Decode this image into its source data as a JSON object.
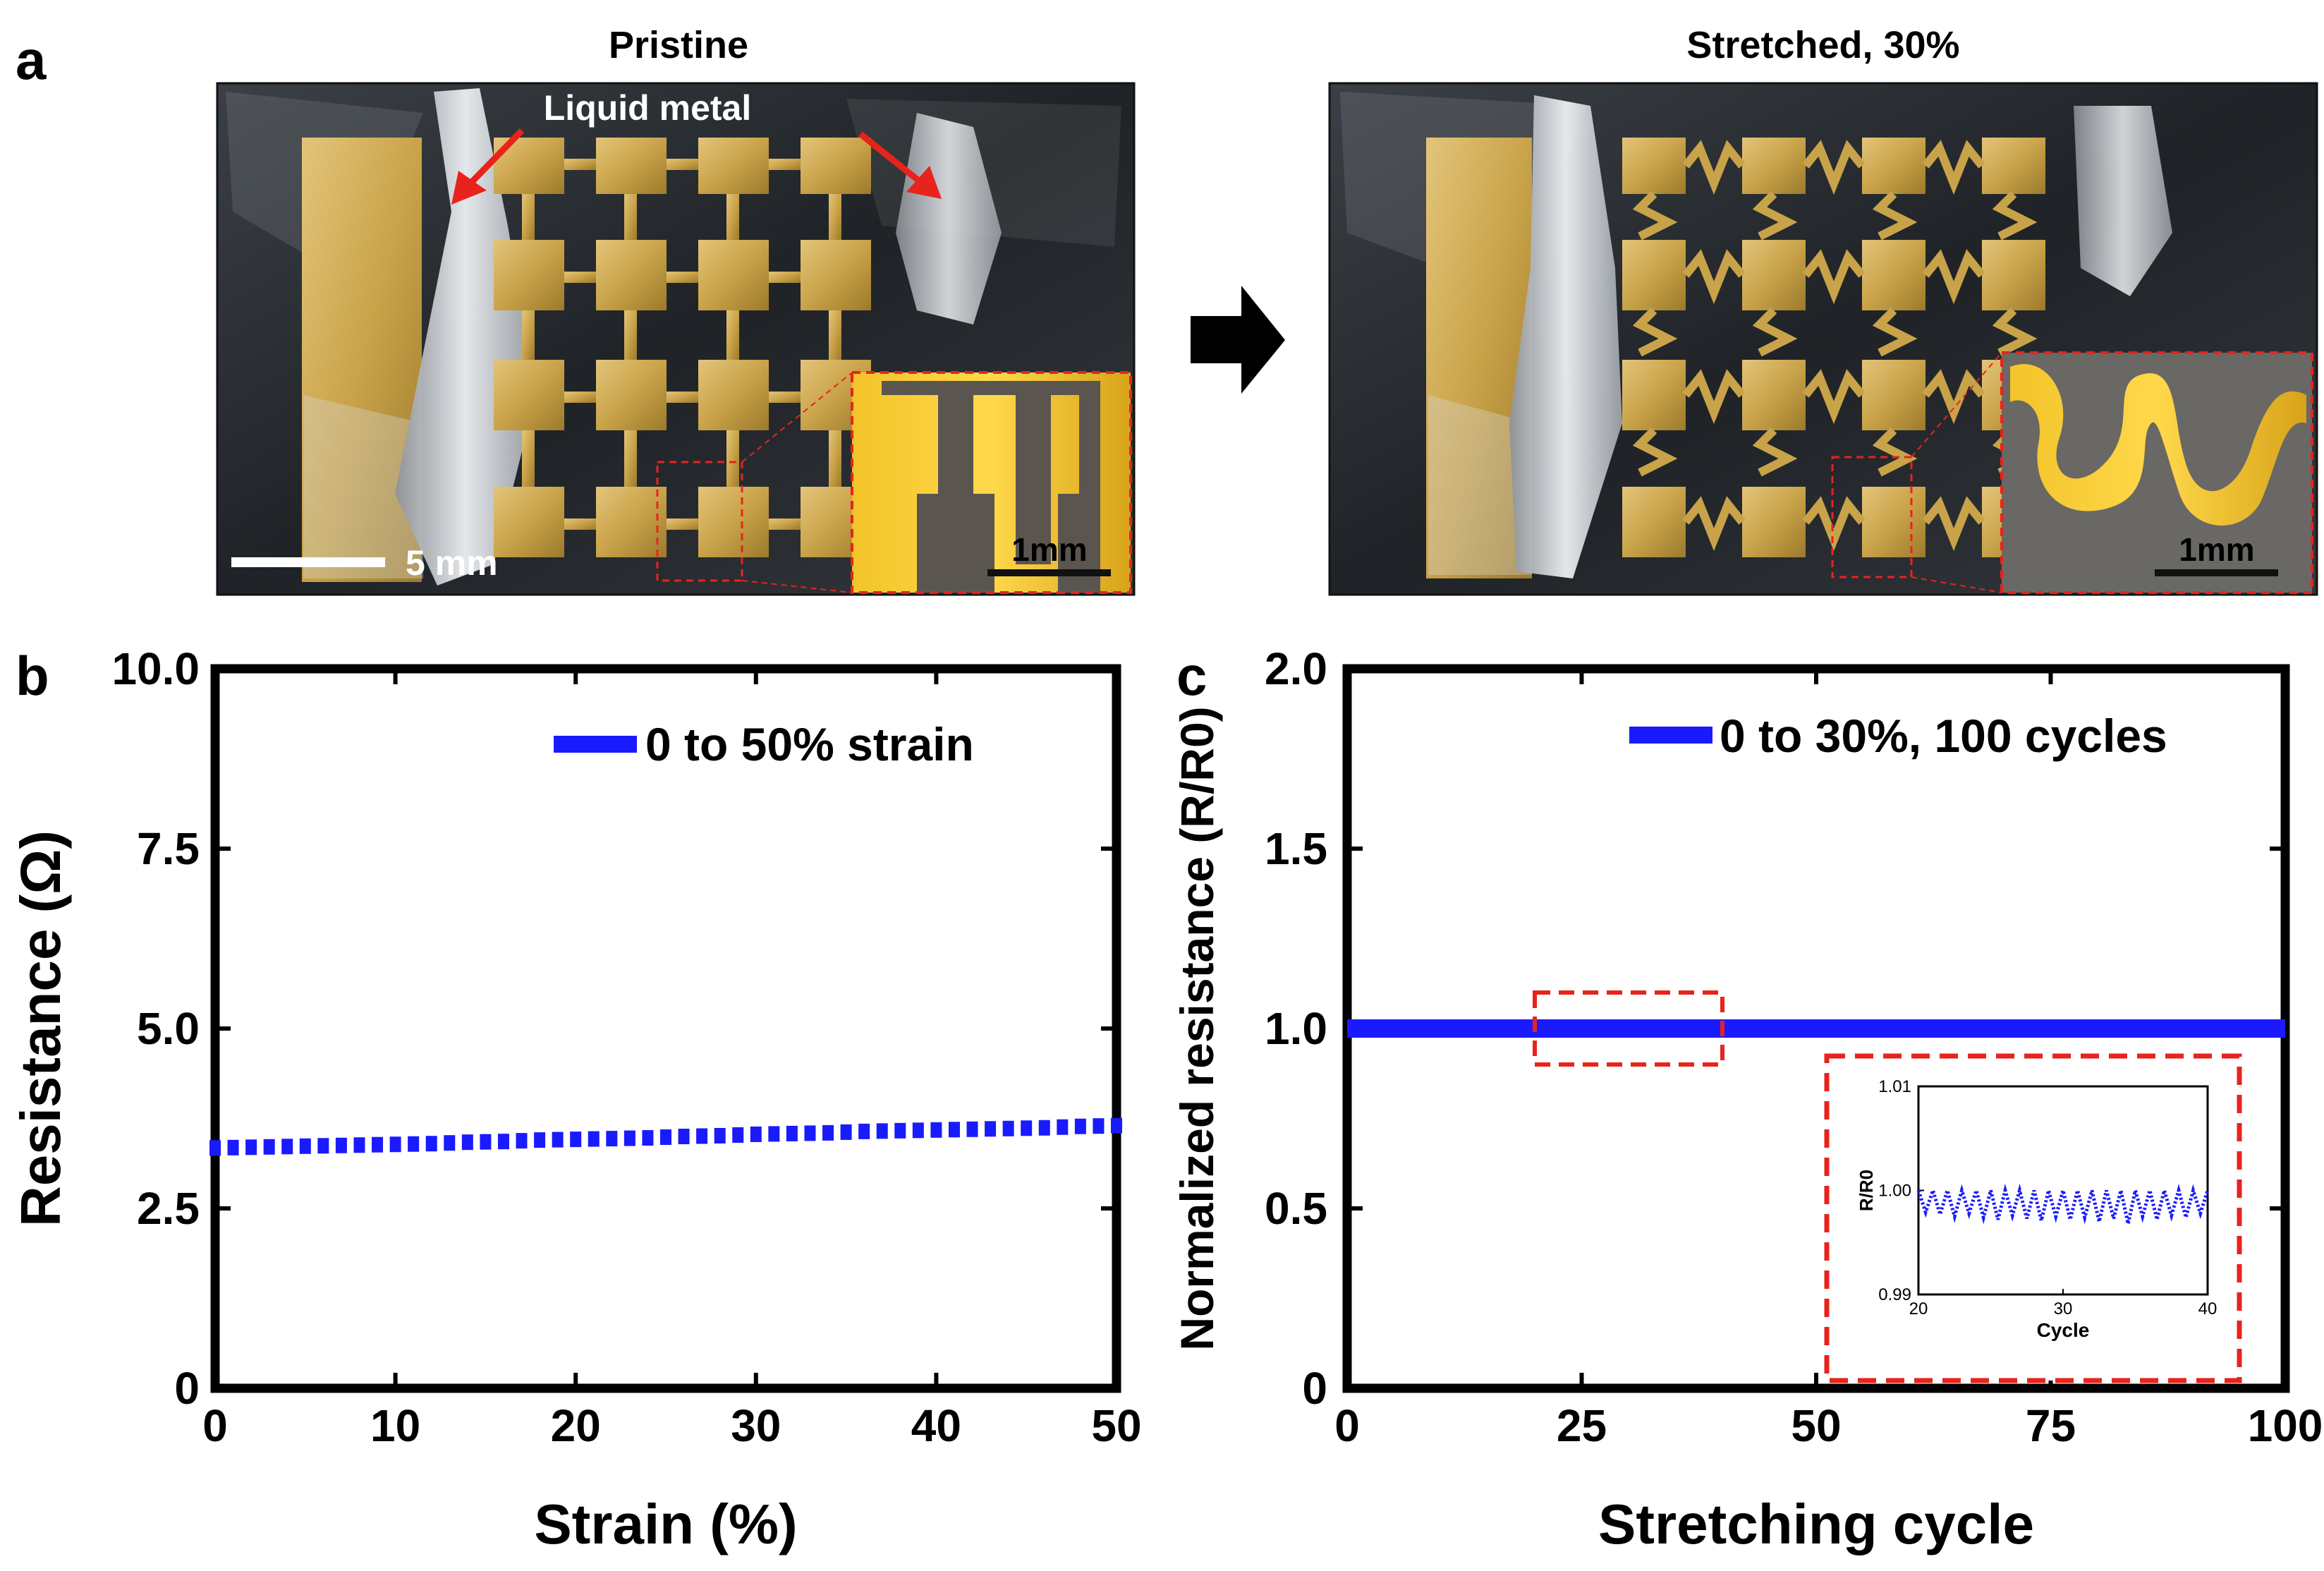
{
  "panel_a": {
    "label": "a",
    "left_title": "Pristine",
    "right_title": "Stretched, 30%",
    "liquid_metal_label": "Liquid metal",
    "scale_bar_main": "5 mm",
    "inset_scale_left": "1mm",
    "inset_scale_right": "1mm"
  },
  "colors": {
    "series": "#1a1aff",
    "arrow_red": "#e8231c",
    "dashed_red": "#e8231c",
    "gold": "#c9a349",
    "gold_dark": "#8b6a1e",
    "substrate": "#2c3034"
  },
  "chart_data": [
    {
      "id": "b",
      "type": "scatter",
      "panel_label": "b",
      "title": "",
      "xlabel": "Strain (%)",
      "ylabel": "Resistance (Ω)",
      "xlim": [
        0,
        50
      ],
      "ylim": [
        0,
        10
      ],
      "xticks": [
        0,
        10,
        20,
        30,
        40,
        50
      ],
      "yticks": [
        0,
        2.5,
        5.0,
        7.5,
        10.0
      ],
      "ytick_labels": [
        "0",
        "2.5",
        "5.0",
        "7.5",
        "10.0"
      ],
      "legend": "0 to 50% strain",
      "legend_position": "top-right",
      "series": [
        {
          "name": "0 to 50% strain",
          "x": [
            0,
            2,
            4,
            6,
            8,
            10,
            12,
            14,
            16,
            18,
            20,
            22,
            24,
            26,
            28,
            30,
            32,
            34,
            36,
            38,
            40,
            42,
            44,
            46,
            48,
            50
          ],
          "y": [
            3.34,
            3.35,
            3.36,
            3.37,
            3.38,
            3.39,
            3.4,
            3.42,
            3.43,
            3.45,
            3.46,
            3.47,
            3.48,
            3.5,
            3.51,
            3.53,
            3.54,
            3.55,
            3.57,
            3.58,
            3.59,
            3.6,
            3.61,
            3.62,
            3.64,
            3.65
          ]
        }
      ]
    },
    {
      "id": "c",
      "type": "line",
      "panel_label": "c",
      "title": "",
      "xlabel": "Stretching cycle",
      "ylabel": "Normalized resistance (R/R0)",
      "xlim": [
        0,
        100
      ],
      "ylim": [
        0,
        2.0
      ],
      "xticks": [
        0,
        25,
        50,
        75,
        100
      ],
      "yticks": [
        0,
        0.5,
        1.0,
        1.5,
        2.0
      ],
      "ytick_labels": [
        "0",
        "0.5",
        "1.0",
        "1.5",
        "2.0"
      ],
      "legend": "0 to 30%, 100 cycles",
      "legend_position": "top-right",
      "series": [
        {
          "name": "0 to 30%, 100 cycles",
          "x": [
            0,
            100
          ],
          "y": [
            1.0,
            1.0
          ]
        }
      ],
      "highlight_region": {
        "x": [
          20,
          40
        ],
        "y": [
          0.9,
          1.1
        ]
      },
      "inset": {
        "xlabel": "Cycle",
        "ylabel": "R/R0",
        "xlim": [
          20,
          40
        ],
        "ylim": [
          0.99,
          1.01
        ],
        "xticks": [
          20,
          30,
          40
        ],
        "yticks": [
          0.99,
          1.0,
          1.01
        ],
        "ytick_labels": [
          "0.99",
          "1.00",
          "1.01"
        ],
        "cycle_min": [
          0.9979,
          0.9977,
          0.9975,
          0.9978,
          0.9974,
          0.9972,
          0.9976,
          0.9973,
          0.9971,
          0.9975,
          0.9972,
          0.9974,
          0.997,
          0.9973,
          0.9968,
          0.9975,
          0.9972,
          0.9976,
          0.9974,
          0.9978
        ],
        "cycle_max": 1.0
      }
    }
  ]
}
